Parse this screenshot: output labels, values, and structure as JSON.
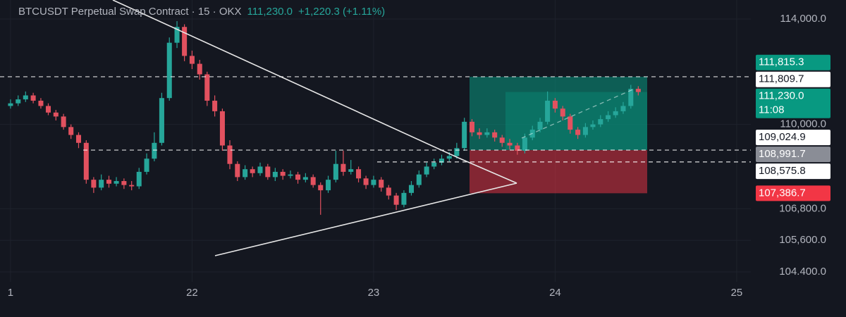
{
  "header": {
    "symbol": "BTCUSDT Perpetual Swap Contract · 15 · OKX",
    "last": "111,230.0",
    "change": "+1,220.3 (+1.11%)"
  },
  "chart_data": {
    "type": "candlestick",
    "up_color": "#26a69a",
    "down_color": "#e2515f",
    "grid": true,
    "xlim": [
      20.942,
      25.078
    ],
    "xticks": [
      {
        "value": 21,
        "label": "1"
      },
      22,
      23,
      24,
      25
    ],
    "ylim": [
      104027,
      114722
    ],
    "yticks": [
      {
        "value": 114000,
        "label": "114,000.0"
      },
      {
        "value": 110000,
        "label": "110,000.0"
      },
      {
        "value": 106800,
        "label": "106,800.0"
      },
      {
        "value": 105600,
        "label": "105,600.0"
      },
      {
        "value": 104400,
        "label": "104.400.0"
      }
    ],
    "x": [
      21,
      21.042,
      21.083,
      21.125,
      21.167,
      21.208,
      21.25,
      21.292,
      21.333,
      21.375,
      21.417,
      21.458,
      21.5,
      21.542,
      21.583,
      21.625,
      21.667,
      21.708,
      21.75,
      21.792,
      21.833,
      21.875,
      21.917,
      21.958,
      22,
      22.042,
      22.083,
      22.125,
      22.167,
      22.208,
      22.25,
      22.292,
      22.333,
      22.375,
      22.417,
      22.458,
      22.5,
      22.542,
      22.583,
      22.625,
      22.667,
      22.708,
      22.75,
      22.792,
      22.833,
      22.875,
      22.917,
      22.958,
      23,
      23.042,
      23.083,
      23.125,
      23.167,
      23.208,
      23.25,
      23.292,
      23.333,
      23.375,
      23.417,
      23.458,
      23.5,
      23.542,
      23.583,
      23.625,
      23.667,
      23.708,
      23.75,
      23.792,
      23.833,
      23.875,
      23.917,
      23.958,
      24,
      24.042,
      24.083,
      24.125,
      24.167,
      24.208,
      24.25,
      24.292,
      24.333,
      24.375,
      24.417,
      24.458
    ],
    "open": [
      110700,
      110800,
      110950,
      111100,
      110900,
      110700,
      110450,
      110300,
      109900,
      109600,
      109300,
      107900,
      107600,
      107900,
      107750,
      107850,
      107700,
      107650,
      108200,
      108700,
      109300,
      111000,
      113100,
      113700,
      112600,
      112300,
      111900,
      110900,
      110500,
      109200,
      108500,
      108000,
      108300,
      108150,
      108400,
      108000,
      108200,
      108050,
      108100,
      107900,
      108000,
      107700,
      107500,
      107900,
      108500,
      108200,
      108300,
      107950,
      107700,
      107900,
      107600,
      107300,
      106950,
      107400,
      107700,
      108100,
      108400,
      108550,
      108700,
      108800,
      109100,
      110100,
      109700,
      109600,
      109700,
      109500,
      109300,
      109200,
      109000,
      109500,
      109800,
      110100,
      110900,
      110600,
      110300,
      109800,
      109600,
      109900,
      110000,
      110200,
      110350,
      110500,
      110700,
      111350
    ],
    "high": [
      110950,
      111100,
      111250,
      111200,
      111000,
      110800,
      110550,
      110400,
      110000,
      109700,
      109400,
      108000,
      108100,
      108050,
      108000,
      107950,
      107850,
      108350,
      108900,
      109700,
      111200,
      113300,
      113920,
      113800,
      112800,
      112450,
      112000,
      111100,
      110600,
      109400,
      108600,
      108450,
      108400,
      108550,
      108500,
      108350,
      108300,
      108250,
      108200,
      108150,
      108100,
      107800,
      108050,
      109000,
      109000,
      108650,
      108400,
      108050,
      108050,
      108000,
      107700,
      107400,
      107500,
      107850,
      108250,
      108550,
      108700,
      108850,
      108950,
      109300,
      110250,
      110200,
      109850,
      109850,
      109800,
      109600,
      109450,
      109300,
      109650,
      109950,
      110250,
      111250,
      111000,
      110700,
      110400,
      109900,
      110050,
      110150,
      110350,
      110500,
      110650,
      110850,
      111500,
      111450
    ],
    "low": [
      110600,
      110700,
      110850,
      110800,
      110600,
      110350,
      110150,
      109800,
      109450,
      109100,
      107750,
      107400,
      107500,
      107600,
      107650,
      107550,
      107500,
      107550,
      108100,
      108600,
      109200,
      110900,
      112900,
      112400,
      112100,
      111700,
      110700,
      110300,
      109000,
      108300,
      107850,
      107900,
      108000,
      108050,
      107900,
      107850,
      107900,
      107950,
      107750,
      107800,
      107600,
      106570,
      107400,
      107800,
      108050,
      108100,
      107800,
      107550,
      107600,
      107450,
      107150,
      106750,
      106850,
      107300,
      107600,
      108000,
      108300,
      108450,
      108600,
      108700,
      109000,
      109550,
      109450,
      109500,
      109350,
      109150,
      109050,
      108850,
      108900,
      109400,
      109700,
      110000,
      110450,
      110150,
      109650,
      109450,
      109500,
      109800,
      109900,
      110100,
      110250,
      110400,
      110600,
      111100
    ],
    "close": [
      110800,
      110950,
      111100,
      110900,
      110700,
      110450,
      110300,
      109900,
      109600,
      109300,
      107900,
      107600,
      107900,
      107750,
      107850,
      107700,
      107650,
      108200,
      108700,
      109300,
      111000,
      113100,
      113700,
      112600,
      112300,
      111900,
      110900,
      110500,
      109200,
      108500,
      108000,
      108300,
      108150,
      108400,
      108000,
      108200,
      108050,
      108100,
      107900,
      108000,
      107700,
      107500,
      107900,
      108500,
      108200,
      108300,
      107950,
      107700,
      107900,
      107600,
      107300,
      106950,
      107400,
      107700,
      108100,
      108400,
      108550,
      108700,
      108800,
      109100,
      110100,
      109700,
      109600,
      109700,
      109500,
      109300,
      109200,
      109000,
      109500,
      109800,
      110100,
      110900,
      110600,
      110300,
      109800,
      109600,
      109900,
      110000,
      110200,
      110350,
      110500,
      110700,
      111350,
      111230
    ],
    "price_tags": [
      {
        "value": 111815.3,
        "label": "111,815.3",
        "color": "#089981",
        "text_color": "#ffffff"
      },
      {
        "value": 111809.7,
        "label": "111,809.7",
        "color": "#ffffff",
        "text_color": "#131722"
      },
      {
        "value": 111230.0,
        "label": "111,230.0",
        "countdown": "11:08",
        "color": "#089981",
        "text_color": "#ffffff"
      },
      {
        "value": 109024.9,
        "label": "109,024.9",
        "color": "#ffffff",
        "text_color": "#131722"
      },
      {
        "value": 108991.7,
        "label": "108,991.7",
        "color": "#8a8d96",
        "text_color": "#ffffff"
      },
      {
        "value": 108575.8,
        "label": "108,575.8",
        "color": "#ffffff",
        "text_color": "#131722"
      },
      {
        "value": 107386.7,
        "label": "107,386.7",
        "color": "#f23645",
        "text_color": "#ffffff"
      }
    ]
  }
}
